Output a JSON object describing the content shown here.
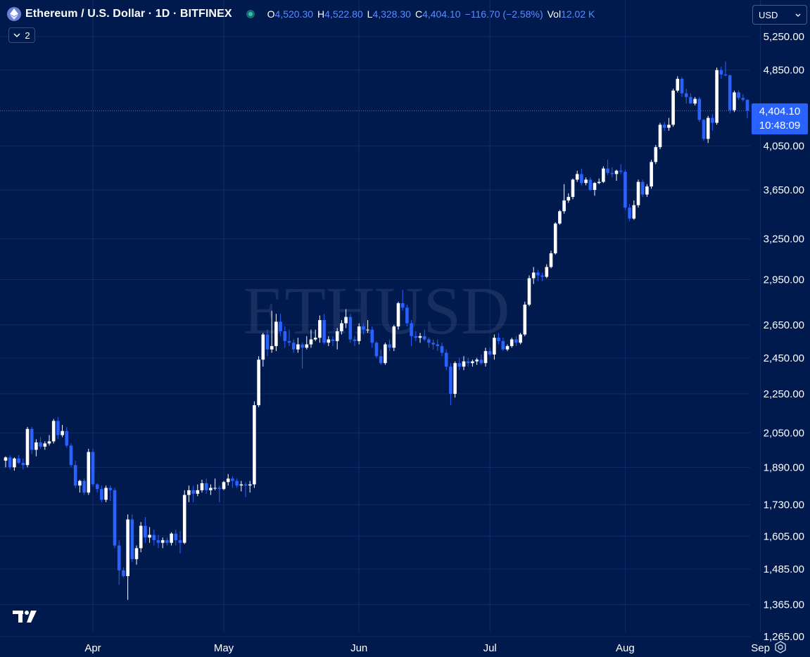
{
  "header": {
    "title": "Ethereum / U.S. Dollar · 1D · BITFINEX",
    "ohlc": {
      "open_label": "O",
      "open": "4,520.30",
      "high_label": "H",
      "high": "4,522.80",
      "low_label": "L",
      "low": "4,328.30",
      "close_label": "C",
      "close": "4,404.10",
      "change": "−116.70 (−2.58%)",
      "vol_label": "Vol",
      "vol": "12.02 K"
    },
    "indicators_count": "2"
  },
  "currency_select": {
    "value": "USD"
  },
  "last_price": {
    "price": "4,404.10",
    "countdown": "10:48:09"
  },
  "watermark": "ETHUSD",
  "colors": {
    "background": "#001a4d",
    "up": "#ffffff",
    "down": "#2962ff",
    "accent": "#2962ff",
    "grid": "#0f2d66",
    "text": "#ffffff"
  },
  "icons": [
    "ethereum-logo-icon",
    "live-status-icon",
    "chevron-down-icon",
    "tradingview-logo-icon",
    "settings-icon"
  ],
  "chart_data": {
    "type": "candlestick",
    "interval": "1D",
    "symbol": "ETHUSD",
    "exchange": "BITFINEX",
    "y_scale": "log",
    "ylim": [
      1200,
      5500
    ],
    "y_ticks": [
      "5,250.00",
      "4,850.00",
      "4,050.00",
      "3,650.00",
      "3,250.00",
      "2,950.00",
      "2,650.00",
      "2,450.00",
      "2,250.00",
      "2,050.00",
      "1,890.00",
      "1,730.00",
      "1,605.00",
      "1,485.00",
      "1,365.00",
      "1,265.00"
    ],
    "x_ticks": [
      "Apr",
      "May",
      "Jun",
      "Jul",
      "Aug",
      "Sep"
    ],
    "x_tick_dates": [
      "2025-04-01",
      "2025-05-01",
      "2025-06-01",
      "2025-07-01",
      "2025-08-01",
      "2025-09-01"
    ],
    "x_range": [
      "2025-03-12",
      "2025-09-10"
    ],
    "grid": true,
    "last_price_line": 4404.1,
    "ohlc": [
      [
        "2025-03-12",
        1920,
        1940,
        1890,
        1935
      ],
      [
        "2025-03-13",
        1935,
        1945,
        1880,
        1890
      ],
      [
        "2025-03-14",
        1890,
        1935,
        1875,
        1930
      ],
      [
        "2025-03-15",
        1930,
        1945,
        1905,
        1910
      ],
      [
        "2025-03-16",
        1910,
        1930,
        1880,
        1900
      ],
      [
        "2025-03-17",
        1900,
        2080,
        1890,
        2070
      ],
      [
        "2025-03-18",
        2070,
        2080,
        1950,
        1970
      ],
      [
        "2025-03-19",
        1970,
        2020,
        1940,
        2005
      ],
      [
        "2025-03-20",
        2005,
        2030,
        1975,
        1985
      ],
      [
        "2025-03-21",
        1985,
        2010,
        1970,
        2000
      ],
      [
        "2025-03-22",
        2000,
        2040,
        1990,
        2010
      ],
      [
        "2025-03-23",
        2010,
        2120,
        2000,
        2110
      ],
      [
        "2025-03-24",
        2110,
        2130,
        2020,
        2040
      ],
      [
        "2025-03-25",
        2040,
        2090,
        2030,
        2060
      ],
      [
        "2025-03-26",
        2060,
        2080,
        1980,
        1990
      ],
      [
        "2025-03-27",
        1990,
        2000,
        1890,
        1900
      ],
      [
        "2025-03-28",
        1900,
        1920,
        1800,
        1810
      ],
      [
        "2025-03-29",
        1810,
        1835,
        1780,
        1830
      ],
      [
        "2025-03-30",
        1830,
        1840,
        1770,
        1780
      ],
      [
        "2025-03-31",
        1780,
        1975,
        1770,
        1960
      ],
      [
        "2025-04-01",
        1960,
        1975,
        1805,
        1815
      ],
      [
        "2025-04-02",
        1815,
        1820,
        1780,
        1795
      ],
      [
        "2025-04-03",
        1795,
        1810,
        1740,
        1750
      ],
      [
        "2025-04-04",
        1750,
        1810,
        1740,
        1800
      ],
      [
        "2025-04-05",
        1800,
        1810,
        1745,
        1790
      ],
      [
        "2025-04-06",
        1790,
        1800,
        1560,
        1570
      ],
      [
        "2025-04-07",
        1570,
        1590,
        1430,
        1480
      ],
      [
        "2025-04-08",
        1480,
        1490,
        1455,
        1460
      ],
      [
        "2025-04-09",
        1460,
        1690,
        1380,
        1670
      ],
      [
        "2025-04-10",
        1670,
        1690,
        1510,
        1520
      ],
      [
        "2025-04-11",
        1520,
        1570,
        1500,
        1560
      ],
      [
        "2025-04-12",
        1560,
        1660,
        1545,
        1645
      ],
      [
        "2025-04-13",
        1645,
        1680,
        1580,
        1600
      ],
      [
        "2025-04-14",
        1600,
        1640,
        1580,
        1610
      ],
      [
        "2025-04-15",
        1610,
        1630,
        1570,
        1590
      ],
      [
        "2025-04-16",
        1590,
        1610,
        1560,
        1580
      ],
      [
        "2025-04-17",
        1580,
        1600,
        1560,
        1590
      ],
      [
        "2025-04-18",
        1590,
        1600,
        1570,
        1580
      ],
      [
        "2025-04-19",
        1580,
        1620,
        1570,
        1615
      ],
      [
        "2025-04-20",
        1615,
        1630,
        1570,
        1590
      ],
      [
        "2025-04-21",
        1590,
        1625,
        1540,
        1580
      ],
      [
        "2025-04-22",
        1580,
        1790,
        1575,
        1770
      ],
      [
        "2025-04-23",
        1770,
        1810,
        1740,
        1790
      ],
      [
        "2025-04-24",
        1790,
        1810,
        1740,
        1775
      ],
      [
        "2025-04-25",
        1775,
        1815,
        1765,
        1790
      ],
      [
        "2025-04-26",
        1790,
        1835,
        1780,
        1820
      ],
      [
        "2025-04-27",
        1820,
        1840,
        1775,
        1790
      ],
      [
        "2025-04-28",
        1790,
        1815,
        1770,
        1800
      ],
      [
        "2025-04-29",
        1800,
        1840,
        1790,
        1800
      ],
      [
        "2025-04-30",
        1800,
        1810,
        1740,
        1795
      ],
      [
        "2025-05-01",
        1795,
        1830,
        1790,
        1825
      ],
      [
        "2025-05-02",
        1825,
        1860,
        1810,
        1840
      ],
      [
        "2025-05-03",
        1840,
        1850,
        1800,
        1830
      ],
      [
        "2025-05-04",
        1830,
        1840,
        1800,
        1810
      ],
      [
        "2025-05-05",
        1810,
        1830,
        1785,
        1815
      ],
      [
        "2025-05-06",
        1815,
        1825,
        1760,
        1810
      ],
      [
        "2025-05-07",
        1810,
        1830,
        1780,
        1815
      ],
      [
        "2025-05-08",
        1815,
        2210,
        1800,
        2190
      ],
      [
        "2025-05-09",
        2190,
        2460,
        2180,
        2440
      ],
      [
        "2025-05-10",
        2440,
        2600,
        2400,
        2590
      ],
      [
        "2025-05-11",
        2590,
        2620,
        2460,
        2500
      ],
      [
        "2025-05-12",
        2500,
        2740,
        2480,
        2520
      ],
      [
        "2025-05-13",
        2520,
        2720,
        2490,
        2670
      ],
      [
        "2025-05-14",
        2670,
        2720,
        2580,
        2610
      ],
      [
        "2025-05-15",
        2610,
        2640,
        2510,
        2550
      ],
      [
        "2025-05-16",
        2550,
        2620,
        2520,
        2540
      ],
      [
        "2025-05-17",
        2540,
        2560,
        2480,
        2500
      ],
      [
        "2025-05-18",
        2500,
        2570,
        2480,
        2530
      ],
      [
        "2025-05-19",
        2530,
        2540,
        2390,
        2510
      ],
      [
        "2025-05-20",
        2510,
        2580,
        2500,
        2530
      ],
      [
        "2025-05-21",
        2530,
        2620,
        2510,
        2560
      ],
      [
        "2025-05-22",
        2560,
        2620,
        2550,
        2570
      ],
      [
        "2025-05-23",
        2570,
        2710,
        2540,
        2680
      ],
      [
        "2025-05-24",
        2680,
        2720,
        2530,
        2540
      ],
      [
        "2025-05-25",
        2540,
        2580,
        2520,
        2560
      ],
      [
        "2025-05-26",
        2560,
        2580,
        2520,
        2550
      ],
      [
        "2025-05-27",
        2550,
        2630,
        2500,
        2610
      ],
      [
        "2025-05-28",
        2610,
        2680,
        2590,
        2660
      ],
      [
        "2025-05-29",
        2660,
        2750,
        2630,
        2700
      ],
      [
        "2025-05-30",
        2700,
        2720,
        2540,
        2560
      ],
      [
        "2025-05-31",
        2560,
        2580,
        2520,
        2550
      ],
      [
        "2025-06-01",
        2550,
        2660,
        2530,
        2640
      ],
      [
        "2025-06-02",
        2640,
        2660,
        2590,
        2620
      ],
      [
        "2025-06-03",
        2620,
        2680,
        2600,
        2620
      ],
      [
        "2025-06-04",
        2620,
        2640,
        2510,
        2540
      ],
      [
        "2025-06-05",
        2540,
        2550,
        2450,
        2460
      ],
      [
        "2025-06-06",
        2460,
        2500,
        2410,
        2420
      ],
      [
        "2025-06-07",
        2420,
        2540,
        2410,
        2530
      ],
      [
        "2025-06-08",
        2530,
        2560,
        2490,
        2510
      ],
      [
        "2025-06-09",
        2510,
        2650,
        2490,
        2640
      ],
      [
        "2025-06-10",
        2640,
        2800,
        2620,
        2790
      ],
      [
        "2025-06-11",
        2790,
        2880,
        2740,
        2760
      ],
      [
        "2025-06-12",
        2760,
        2780,
        2640,
        2660
      ],
      [
        "2025-06-13",
        2660,
        2680,
        2520,
        2580
      ],
      [
        "2025-06-14",
        2580,
        2610,
        2550,
        2570
      ],
      [
        "2025-06-15",
        2570,
        2600,
        2540,
        2580
      ],
      [
        "2025-06-16",
        2580,
        2620,
        2550,
        2560
      ],
      [
        "2025-06-17",
        2560,
        2570,
        2510,
        2540
      ],
      [
        "2025-06-18",
        2540,
        2560,
        2500,
        2530
      ],
      [
        "2025-06-19",
        2530,
        2560,
        2490,
        2520
      ],
      [
        "2025-06-20",
        2520,
        2540,
        2460,
        2480
      ],
      [
        "2025-06-21",
        2480,
        2500,
        2380,
        2400
      ],
      [
        "2025-06-22",
        2400,
        2420,
        2190,
        2250
      ],
      [
        "2025-06-23",
        2250,
        2430,
        2230,
        2420
      ],
      [
        "2025-06-24",
        2420,
        2450,
        2380,
        2400
      ],
      [
        "2025-06-25",
        2400,
        2460,
        2380,
        2430
      ],
      [
        "2025-06-26",
        2430,
        2450,
        2400,
        2420
      ],
      [
        "2025-06-27",
        2420,
        2440,
        2400,
        2430
      ],
      [
        "2025-06-28",
        2430,
        2450,
        2410,
        2440
      ],
      [
        "2025-06-29",
        2440,
        2470,
        2410,
        2420
      ],
      [
        "2025-06-30",
        2420,
        2510,
        2400,
        2490
      ],
      [
        "2025-07-01",
        2490,
        2510,
        2460,
        2470
      ],
      [
        "2025-07-02",
        2470,
        2590,
        2440,
        2570
      ],
      [
        "2025-07-03",
        2570,
        2600,
        2530,
        2550
      ],
      [
        "2025-07-04",
        2550,
        2570,
        2490,
        2500
      ],
      [
        "2025-07-05",
        2500,
        2530,
        2490,
        2520
      ],
      [
        "2025-07-06",
        2520,
        2570,
        2510,
        2560
      ],
      [
        "2025-07-07",
        2560,
        2580,
        2520,
        2540
      ],
      [
        "2025-07-08",
        2540,
        2600,
        2530,
        2590
      ],
      [
        "2025-07-09",
        2590,
        2800,
        2580,
        2780
      ],
      [
        "2025-07-10",
        2780,
        2980,
        2770,
        2960
      ],
      [
        "2025-07-11",
        2960,
        3040,
        2920,
        3000
      ],
      [
        "2025-07-12",
        3000,
        3020,
        2940,
        2980
      ],
      [
        "2025-07-13",
        2980,
        3000,
        2940,
        2970
      ],
      [
        "2025-07-14",
        2970,
        3060,
        2960,
        3040
      ],
      [
        "2025-07-15",
        3040,
        3160,
        3030,
        3140
      ],
      [
        "2025-07-16",
        3140,
        3380,
        3130,
        3370
      ],
      [
        "2025-07-17",
        3370,
        3480,
        3360,
        3470
      ],
      [
        "2025-07-18",
        3470,
        3700,
        3450,
        3560
      ],
      [
        "2025-07-19",
        3560,
        3620,
        3540,
        3590
      ],
      [
        "2025-07-20",
        3590,
        3750,
        3570,
        3740
      ],
      [
        "2025-07-21",
        3740,
        3820,
        3720,
        3790
      ],
      [
        "2025-07-22",
        3790,
        3840,
        3690,
        3710
      ],
      [
        "2025-07-23",
        3710,
        3760,
        3690,
        3740
      ],
      [
        "2025-07-24",
        3740,
        3760,
        3640,
        3650
      ],
      [
        "2025-07-25",
        3650,
        3720,
        3600,
        3710
      ],
      [
        "2025-07-26",
        3710,
        3750,
        3700,
        3720
      ],
      [
        "2025-07-27",
        3720,
        3860,
        3710,
        3840
      ],
      [
        "2025-07-28",
        3840,
        3920,
        3780,
        3800
      ],
      [
        "2025-07-29",
        3800,
        3850,
        3760,
        3790
      ],
      [
        "2025-07-30",
        3790,
        3830,
        3730,
        3820
      ],
      [
        "2025-07-31",
        3820,
        3880,
        3790,
        3810
      ],
      [
        "2025-08-01",
        3810,
        3830,
        3480,
        3500
      ],
      [
        "2025-08-02",
        3500,
        3530,
        3390,
        3410
      ],
      [
        "2025-08-03",
        3410,
        3560,
        3400,
        3520
      ],
      [
        "2025-08-04",
        3520,
        3740,
        3500,
        3720
      ],
      [
        "2025-08-05",
        3720,
        3740,
        3590,
        3610
      ],
      [
        "2025-08-06",
        3610,
        3700,
        3590,
        3680
      ],
      [
        "2025-08-07",
        3680,
        3920,
        3660,
        3900
      ],
      [
        "2025-08-08",
        3900,
        4060,
        3880,
        4040
      ],
      [
        "2025-08-09",
        4040,
        4280,
        4020,
        4260
      ],
      [
        "2025-08-10",
        4260,
        4290,
        4200,
        4230
      ],
      [
        "2025-08-11",
        4230,
        4330,
        4200,
        4260
      ],
      [
        "2025-08-12",
        4260,
        4640,
        4240,
        4620
      ],
      [
        "2025-08-13",
        4620,
        4780,
        4600,
        4750
      ],
      [
        "2025-08-14",
        4750,
        4770,
        4550,
        4590
      ],
      [
        "2025-08-15",
        4590,
        4640,
        4480,
        4550
      ],
      [
        "2025-08-16",
        4550,
        4590,
        4500,
        4480
      ],
      [
        "2025-08-17",
        4480,
        4550,
        4460,
        4530
      ],
      [
        "2025-08-18",
        4530,
        4550,
        4290,
        4310
      ],
      [
        "2025-08-19",
        4310,
        4320,
        4100,
        4120
      ],
      [
        "2025-08-20",
        4120,
        4350,
        4080,
        4330
      ],
      [
        "2025-08-21",
        4330,
        4370,
        4200,
        4280
      ],
      [
        "2025-08-22",
        4280,
        4880,
        4260,
        4850
      ],
      [
        "2025-08-23",
        4850,
        4890,
        4750,
        4800
      ],
      [
        "2025-08-24",
        4800,
        4950,
        4780,
        4790
      ],
      [
        "2025-08-25",
        4790,
        4800,
        4380,
        4410
      ],
      [
        "2025-08-26",
        4410,
        4620,
        4390,
        4600
      ],
      [
        "2025-08-27",
        4600,
        4620,
        4520,
        4540
      ],
      [
        "2025-08-28",
        4540,
        4580,
        4500,
        4520
      ],
      [
        "2025-08-29",
        4520,
        4522.8,
        4328.3,
        4404.1
      ]
    ]
  }
}
